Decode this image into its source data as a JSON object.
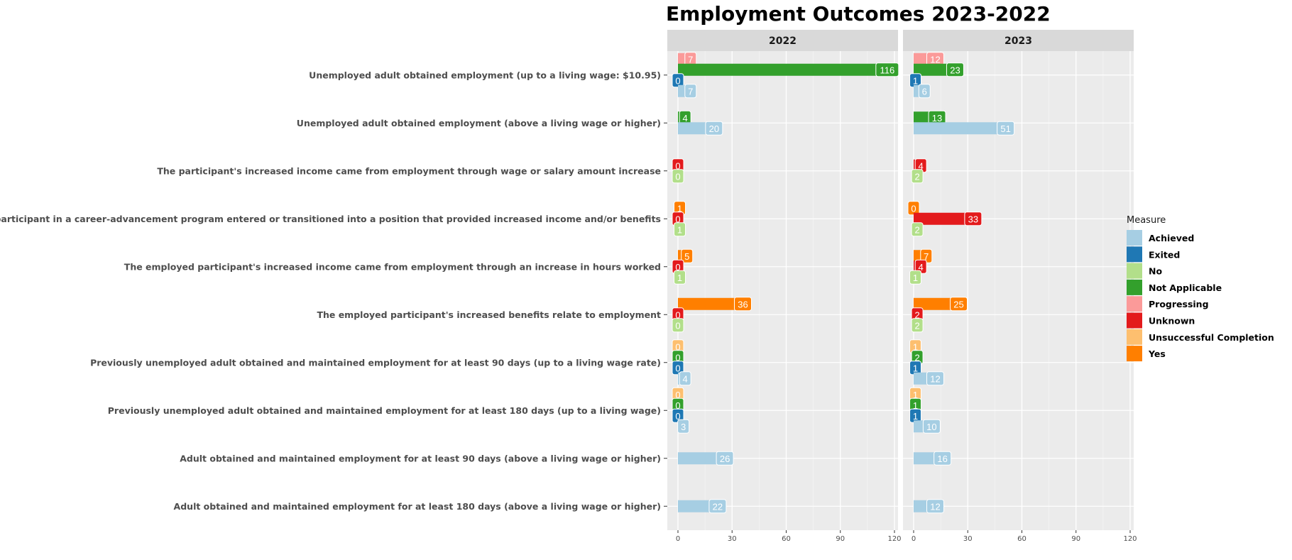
{
  "chart_data": {
    "type": "bar",
    "title": "Employment Outcomes 2023-2022",
    "panels": [
      "2022",
      "2023"
    ],
    "xlim": [
      0,
      120
    ],
    "x_ticks": [
      0,
      30,
      60,
      90,
      120
    ],
    "legend": {
      "title": "Measure",
      "placement": "right",
      "items": [
        {
          "name": "Achieved",
          "color": "#a6cee3"
        },
        {
          "name": "Exited",
          "color": "#1f78b4"
        },
        {
          "name": "No",
          "color": "#b2df8a"
        },
        {
          "name": "Not Applicable",
          "color": "#33a02c"
        },
        {
          "name": "Progressing",
          "color": "#fb9a99"
        },
        {
          "name": "Unknown",
          "color": "#e31a1c"
        },
        {
          "name": "Unsuccessful Completion",
          "color": "#fdbf6f"
        },
        {
          "name": "Yes",
          "color": "#ff7f00"
        }
      ]
    },
    "categories": [
      {
        "label": "Unemployed adult obtained employment (up to a living wage: $10.95)",
        "bars": [
          {
            "measure": "Progressing",
            "v2022": 7,
            "v2023": 12
          },
          {
            "measure": "Not Applicable",
            "v2022": 116,
            "v2023": 23
          },
          {
            "measure": "Exited",
            "v2022": 0,
            "v2023": 1
          },
          {
            "measure": "Achieved",
            "v2022": 7,
            "v2023": 6
          }
        ]
      },
      {
        "label": "Unemployed adult obtained employment (above a living wage or higher)",
        "bars": [
          {
            "measure": "Not Applicable",
            "v2022": 4,
            "v2023": 13
          },
          {
            "measure": "Achieved",
            "v2022": 20,
            "v2023": 51
          }
        ]
      },
      {
        "label": "The participant's increased income came from employment through wage or salary amount increase",
        "bars": [
          {
            "measure": "Unknown",
            "v2022": 0,
            "v2023": 4
          },
          {
            "measure": "No",
            "v2022": 0,
            "v2023": 2
          }
        ]
      },
      {
        "label": "The employed participant in a career-advancement program entered or transitioned into a position that provided increased income and/or benefits",
        "bars": [
          {
            "measure": "Yes",
            "v2022": 1,
            "v2023": 0
          },
          {
            "measure": "Unknown",
            "v2022": 0,
            "v2023": 33
          },
          {
            "measure": "No",
            "v2022": 1,
            "v2023": 2
          }
        ]
      },
      {
        "label": "The employed participant's increased income came from employment through an increase in hours worked",
        "bars": [
          {
            "measure": "Yes",
            "v2022": 5,
            "v2023": 7
          },
          {
            "measure": "Unknown",
            "v2022": 0,
            "v2023": 4
          },
          {
            "measure": "No",
            "v2022": 1,
            "v2023": 1
          }
        ]
      },
      {
        "label": "The employed participant's increased benefits relate to employment",
        "bars": [
          {
            "measure": "Yes",
            "v2022": 36,
            "v2023": 25
          },
          {
            "measure": "Unknown",
            "v2022": 0,
            "v2023": 2
          },
          {
            "measure": "No",
            "v2022": 0,
            "v2023": 2
          }
        ]
      },
      {
        "label": "Previously unemployed adult obtained and maintained employment for at least 90 days (up to a living wage rate)",
        "bars": [
          {
            "measure": "Unsuccessful Completion",
            "v2022": 0,
            "v2023": 1
          },
          {
            "measure": "Not Applicable",
            "v2022": 0,
            "v2023": 2
          },
          {
            "measure": "Exited",
            "v2022": 0,
            "v2023": 1
          },
          {
            "measure": "Achieved",
            "v2022": 4,
            "v2023": 12
          }
        ]
      },
      {
        "label": "Previously unemployed adult obtained and maintained employment for at least 180 days (up to a living wage)",
        "bars": [
          {
            "measure": "Unsuccessful Completion",
            "v2022": 0,
            "v2023": 1
          },
          {
            "measure": "Not Applicable",
            "v2022": 0,
            "v2023": 1
          },
          {
            "measure": "Exited",
            "v2022": 0,
            "v2023": 1
          },
          {
            "measure": "Achieved",
            "v2022": 3,
            "v2023": 10
          }
        ]
      },
      {
        "label": "Adult obtained and maintained employment for at least 90 days (above a living wage or higher)",
        "bars": [
          {
            "measure": "Achieved",
            "v2022": 26,
            "v2023": 16
          }
        ]
      },
      {
        "label": "Adult obtained and maintained employment for at least 180 days (above a living wage or higher)",
        "bars": [
          {
            "measure": "Achieved",
            "v2022": 22,
            "v2023": 12
          }
        ]
      }
    ]
  }
}
